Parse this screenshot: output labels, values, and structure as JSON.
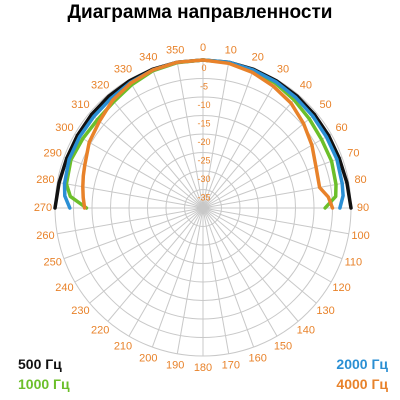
{
  "chart_data": {
    "type": "polar-line",
    "title": "Диаграмма направленности",
    "angle_ticks": [
      "0",
      "10",
      "20",
      "30",
      "40",
      "50",
      "60",
      "70",
      "80",
      "90",
      "100",
      "110",
      "120",
      "130",
      "140",
      "150",
      "160",
      "170",
      "180",
      "190",
      "200",
      "210",
      "220",
      "230",
      "240",
      "250",
      "260",
      "270",
      "280",
      "290",
      "300",
      "310",
      "320",
      "330",
      "340",
      "350"
    ],
    "radial_ticks": [
      "0",
      "-5",
      "-10",
      "-15",
      "-20",
      "-25",
      "-30",
      "-35"
    ],
    "radial_range_db": [
      -40,
      0
    ],
    "grid": true,
    "colors": {
      "angle_labels": "#e8822a",
      "radial_labels": "#e8822a",
      "grid": "#c8c8c8"
    },
    "series": [
      {
        "name": "500 Гц",
        "color": "#111111",
        "angles": [
          -90,
          -80,
          -70,
          -60,
          -50,
          -40,
          -30,
          -20,
          -10,
          0,
          10,
          20,
          30,
          40,
          50,
          60,
          70,
          80,
          90
        ],
        "values": [
          0,
          -0.5,
          -0.8,
          -0.8,
          -0.7,
          -0.5,
          -0.3,
          -0.1,
          0,
          0,
          0,
          -0.1,
          -0.3,
          -0.5,
          -0.7,
          -0.8,
          -0.8,
          -0.5,
          0
        ]
      },
      {
        "name": "1000 Гц",
        "color": "#6cbf2a",
        "angles": [
          -90,
          -85,
          -80,
          -70,
          -60,
          -50,
          -40,
          -30,
          -20,
          -10,
          0,
          10,
          20,
          30,
          40,
          50,
          60,
          70,
          80,
          85,
          90
        ],
        "values": [
          -8.5,
          -4,
          -2.5,
          -2,
          -2.5,
          -2.8,
          -2.5,
          -1.5,
          -0.5,
          -0.1,
          0,
          -0.1,
          -0.5,
          -1,
          -1.8,
          -2.5,
          -3,
          -3,
          -3.5,
          -4,
          -7
        ]
      },
      {
        "name": "2000 Гц",
        "color": "#2a8fd4",
        "angles": [
          -90,
          -85,
          -80,
          -70,
          -60,
          -50,
          -40,
          -30,
          -20,
          -10,
          0,
          10,
          20,
          30,
          40,
          50,
          60,
          70,
          80,
          85,
          90
        ],
        "values": [
          -4,
          -2.5,
          -2,
          -1.5,
          -1.5,
          -1.5,
          -1.3,
          -0.8,
          -0.3,
          0,
          0,
          0,
          -0.3,
          -0.6,
          -1,
          -1.3,
          -1.5,
          -1.5,
          -1.8,
          -2,
          -3
        ]
      },
      {
        "name": "4000 Гц",
        "color": "#e8822a",
        "angles": [
          -90,
          -85,
          -80,
          -75,
          -70,
          -60,
          -50,
          -40,
          -30,
          -20,
          -10,
          0,
          10,
          20,
          30,
          40,
          50,
          60,
          70,
          80,
          85,
          90
        ],
        "values": [
          -8,
          -7.5,
          -7,
          -6.5,
          -6,
          -4.5,
          -3.5,
          -2,
          -1,
          -0.3,
          0,
          0,
          -0.3,
          -1,
          -2,
          -3,
          -4.5,
          -6,
          -7.5,
          -8,
          -6,
          -5
        ]
      }
    ]
  }
}
